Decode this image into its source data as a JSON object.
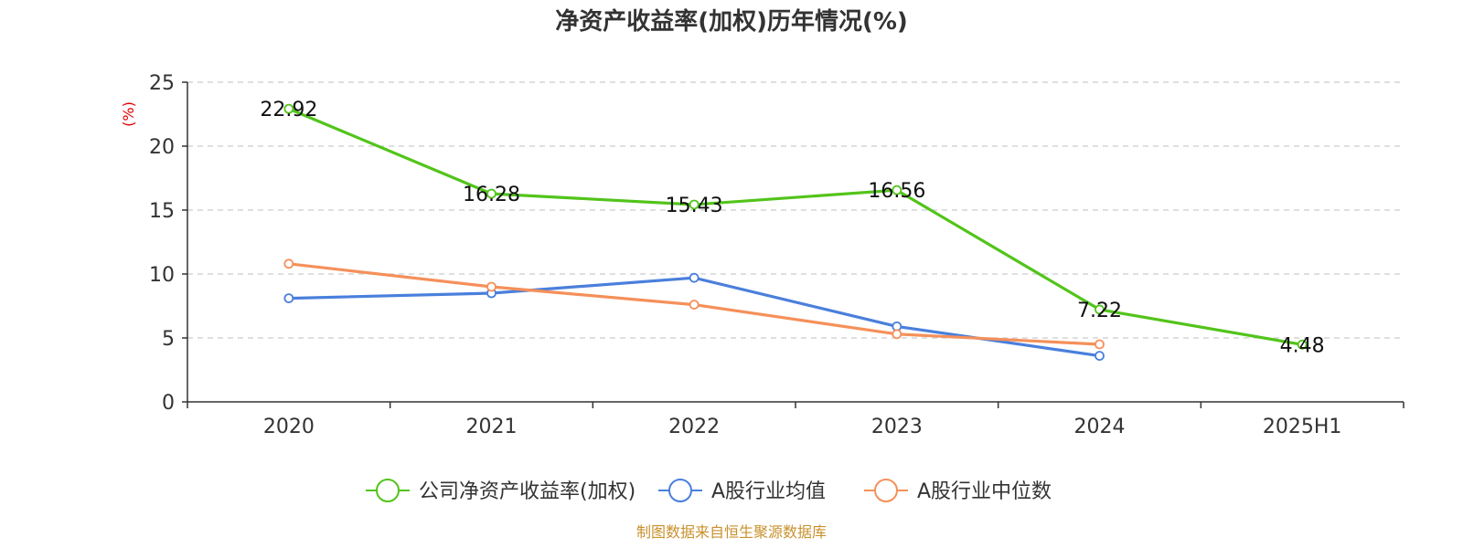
{
  "chart_data": {
    "type": "line",
    "title": "净资产收益率(加权)历年情况(%)",
    "ylabel": "(%)",
    "xlabel": "",
    "categories": [
      "2020",
      "2021",
      "2022",
      "2023",
      "2024",
      "2025H1"
    ],
    "ylim": [
      0,
      25
    ],
    "yticks": [
      0,
      5,
      10,
      15,
      20,
      25
    ],
    "grid": true,
    "legend_position": "bottom-center",
    "series": [
      {
        "name": "公司净资产收益率(加权)",
        "color": "#52c41a",
        "values": [
          22.92,
          16.28,
          15.43,
          16.56,
          7.22,
          4.48
        ],
        "labels": [
          "22.92",
          "16.28",
          "15.43",
          "16.56",
          "7.22",
          "4.48"
        ],
        "show_labels": true
      },
      {
        "name": "A股行业均值",
        "color": "#4a7fdc",
        "values": [
          8.1,
          8.5,
          9.7,
          5.9,
          3.6,
          null
        ],
        "show_labels": false
      },
      {
        "name": "A股行业中位数",
        "color": "#f5905a",
        "values": [
          10.8,
          9.0,
          7.6,
          5.3,
          4.5,
          null
        ],
        "show_labels": false
      }
    ]
  },
  "source": "制图数据来自恒生聚源数据库",
  "colors": {
    "axis": "#333333",
    "grid": "#cccccc",
    "unit_label": "#e00000",
    "source": "#c8912c"
  }
}
